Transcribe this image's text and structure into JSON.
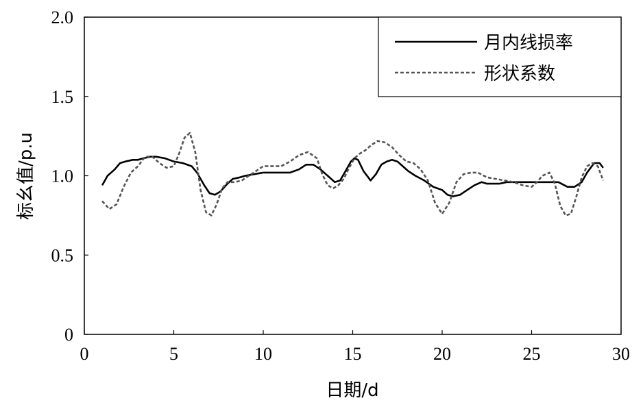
{
  "chart_data": {
    "type": "line",
    "title": "",
    "xlabel": "日期/d",
    "ylabel": "标幺值/p.u",
    "xlim": [
      0,
      30
    ],
    "ylim": [
      0,
      2.0
    ],
    "xticks": [
      0,
      5,
      10,
      15,
      20,
      25,
      30
    ],
    "xtick_labels": [
      "0",
      "5",
      "10",
      "15",
      "20",
      "25",
      "30"
    ],
    "yticks": [
      0,
      0.5,
      1.0,
      1.5,
      2.0
    ],
    "ytick_labels": [
      "0",
      "0.5",
      "1.0",
      "1.5",
      "2.0"
    ],
    "grid": false,
    "legend_position": "top-right",
    "series": [
      {
        "name": "月内线损率",
        "style": "solid",
        "color": "#000000",
        "x": [
          1,
          1.3,
          1.7,
          2,
          2.3,
          2.7,
          3,
          3.3,
          3.7,
          4,
          4.5,
          5,
          5.5,
          6,
          6.3,
          6.7,
          7,
          7.3,
          7.6,
          8,
          8.3,
          8.7,
          9,
          9.5,
          10,
          10.5,
          11,
          11.5,
          12,
          12.4,
          12.8,
          13.2,
          13.6,
          14,
          14.3,
          14.6,
          14.9,
          15.1,
          15.3,
          15.6,
          16,
          16.3,
          16.6,
          16.9,
          17.2,
          17.5,
          17.8,
          18.1,
          18.5,
          19,
          19.5,
          20,
          20.3,
          20.6,
          21,
          21.4,
          21.8,
          22.2,
          22.5,
          22.8,
          23.2,
          23.6,
          24,
          24.5,
          25,
          25.5,
          26,
          26.5,
          27,
          27.4,
          27.8,
          28.1,
          28.5,
          28.8,
          29
        ],
        "y": [
          0.94,
          1.0,
          1.04,
          1.08,
          1.09,
          1.1,
          1.1,
          1.11,
          1.12,
          1.12,
          1.11,
          1.09,
          1.08,
          1.06,
          1.02,
          0.94,
          0.89,
          0.88,
          0.9,
          0.95,
          0.98,
          0.99,
          1.0,
          1.01,
          1.02,
          1.02,
          1.02,
          1.02,
          1.04,
          1.07,
          1.07,
          1.04,
          1.0,
          0.96,
          0.97,
          1.03,
          1.09,
          1.11,
          1.1,
          1.03,
          0.97,
          1.01,
          1.07,
          1.09,
          1.1,
          1.09,
          1.06,
          1.03,
          1.0,
          0.97,
          0.93,
          0.91,
          0.88,
          0.87,
          0.88,
          0.91,
          0.94,
          0.96,
          0.95,
          0.95,
          0.95,
          0.96,
          0.96,
          0.96,
          0.96,
          0.96,
          0.96,
          0.96,
          0.93,
          0.93,
          0.96,
          1.02,
          1.08,
          1.08,
          1.05
        ]
      },
      {
        "name": "形状系数",
        "style": "dashed",
        "color": "#555555",
        "x": [
          1,
          1.4,
          1.8,
          2.2,
          2.6,
          3,
          3.4,
          3.8,
          4.2,
          4.6,
          5,
          5.3,
          5.6,
          5.9,
          6.2,
          6.5,
          6.8,
          7.1,
          7.4,
          7.7,
          8,
          8.4,
          8.8,
          9.2,
          9.6,
          10,
          10.5,
          11,
          11.5,
          12,
          12.5,
          13,
          13.3,
          13.6,
          13.9,
          14.2,
          14.5,
          14.8,
          15.1,
          15.4,
          15.7,
          16,
          16.4,
          16.8,
          17.2,
          17.6,
          18,
          18.4,
          18.8,
          19.2,
          19.6,
          20,
          20.4,
          20.8,
          21.2,
          21.6,
          22,
          22.5,
          23,
          23.5,
          24,
          24.5,
          25,
          25.3,
          25.6,
          26,
          26.3,
          26.6,
          26.9,
          27.2,
          27.5,
          27.8,
          28.1,
          28.4,
          28.7,
          29
        ],
        "y": [
          0.84,
          0.79,
          0.82,
          0.93,
          1.02,
          1.06,
          1.12,
          1.12,
          1.08,
          1.05,
          1.06,
          1.14,
          1.24,
          1.27,
          1.15,
          0.91,
          0.77,
          0.75,
          0.82,
          0.92,
          0.96,
          0.96,
          0.97,
          1.0,
          1.03,
          1.06,
          1.06,
          1.06,
          1.09,
          1.13,
          1.15,
          1.11,
          1.01,
          0.94,
          0.92,
          0.94,
          0.98,
          1.05,
          1.11,
          1.14,
          1.16,
          1.19,
          1.22,
          1.21,
          1.18,
          1.13,
          1.09,
          1.08,
          1.04,
          0.97,
          0.83,
          0.76,
          0.83,
          0.96,
          1.01,
          1.02,
          1.02,
          0.99,
          0.98,
          0.97,
          0.96,
          0.94,
          0.93,
          0.96,
          1.0,
          1.02,
          0.95,
          0.81,
          0.75,
          0.76,
          0.87,
          0.99,
          1.06,
          1.08,
          1.06,
          0.97
        ]
      }
    ]
  }
}
